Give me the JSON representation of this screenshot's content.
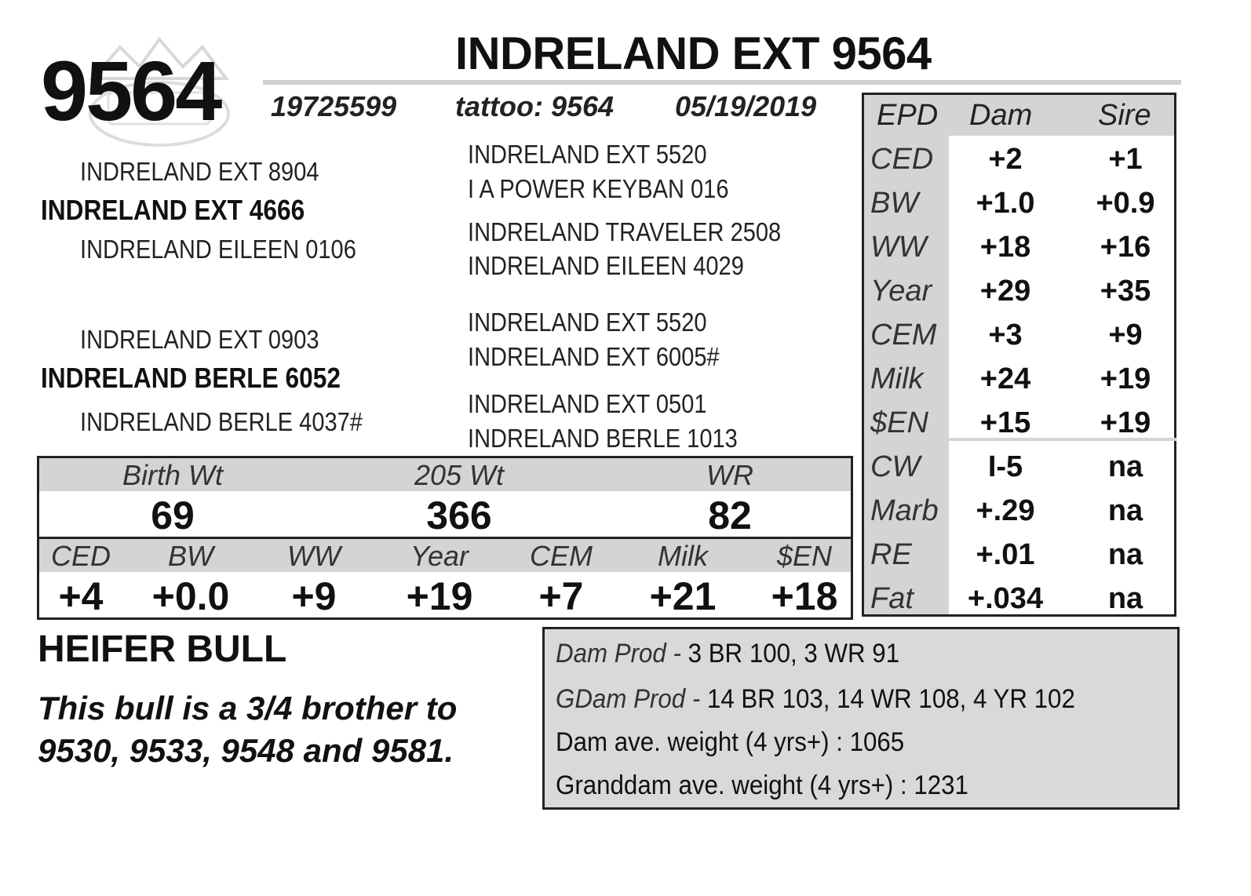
{
  "header": {
    "lot_number": "9564",
    "name": "INDRELAND EXT 9564",
    "registration": "19725599",
    "tattoo": "tattoo: 9564",
    "birth_date": "05/19/2019"
  },
  "pedigree": {
    "sire": "INDRELAND EXT 4666",
    "sire_sire": "INDRELAND EXT 8904",
    "sire_dam": "INDRELAND EILEEN 0106",
    "sire_sire_sire": "INDRELAND EXT 5520",
    "sire_sire_dam": "I A POWER KEYBAN 016",
    "sire_dam_sire": "INDRELAND TRAVELER 2508",
    "sire_dam_dam": "INDRELAND EILEEN 4029",
    "dam": "INDRELAND BERLE 6052",
    "dam_sire": "INDRELAND EXT 0903",
    "dam_dam": "INDRELAND BERLE 4037#",
    "dam_sire_sire": "INDRELAND EXT 5520",
    "dam_sire_dam": "INDRELAND EXT 6005#",
    "dam_dam_sire": "INDRELAND EXT 0501",
    "dam_dam_dam": "INDRELAND BERLE 1013"
  },
  "epd_table": {
    "headers": [
      "EPD",
      "Dam",
      "Sire"
    ],
    "rows": [
      {
        "label": "CED",
        "dam": "+2",
        "sire": "+1"
      },
      {
        "label": "BW",
        "dam": "+1.0",
        "sire": "+0.9"
      },
      {
        "label": "WW",
        "dam": "+18",
        "sire": "+16"
      },
      {
        "label": "Year",
        "dam": "+29",
        "sire": "+35"
      },
      {
        "label": "CEM",
        "dam": "+3",
        "sire": "+9"
      },
      {
        "label": "Milk",
        "dam": "+24",
        "sire": "+19"
      },
      {
        "label": "$EN",
        "dam": "+15",
        "sire": "+19"
      },
      {
        "label": "CW",
        "dam": "I-5",
        "sire": "na"
      },
      {
        "label": "Marb",
        "dam": "+.29",
        "sire": "na"
      },
      {
        "label": "RE",
        "dam": "+.01",
        "sire": "na"
      },
      {
        "label": "Fat",
        "dam": "+.034",
        "sire": "na"
      }
    ]
  },
  "weights": {
    "headers": [
      "Birth Wt",
      "205 Wt",
      "WR"
    ],
    "values": [
      "69",
      "366",
      "82"
    ]
  },
  "calf_epds": {
    "headers": [
      "CED",
      "BW",
      "WW",
      "Year",
      "CEM",
      "Milk",
      "$EN"
    ],
    "values": [
      "+4",
      "+0.0",
      "+9",
      "+19",
      "+7",
      "+21",
      "+18"
    ]
  },
  "notes": {
    "heading": "HEIFER BULL",
    "description": "This bull is a 3/4 brother to 9530, 9533, 9548 and 9581."
  },
  "production": {
    "dam_label": "Dam Prod - ",
    "dam_value": "3 BR 100, 3 WR 91",
    "gdam_label": "GDam Prod - ",
    "gdam_value": "14 BR 103, 14 WR 108, 4 YR 102",
    "dam_weight": "Dam ave. weight (4 yrs+) : 1065",
    "granddam_weight": "Granddam ave. weight (4 yrs+) : 1231"
  },
  "colors": {
    "header_gray": "#d4d4d4",
    "box_gray": "#d9d9d9",
    "border": "#222222"
  }
}
